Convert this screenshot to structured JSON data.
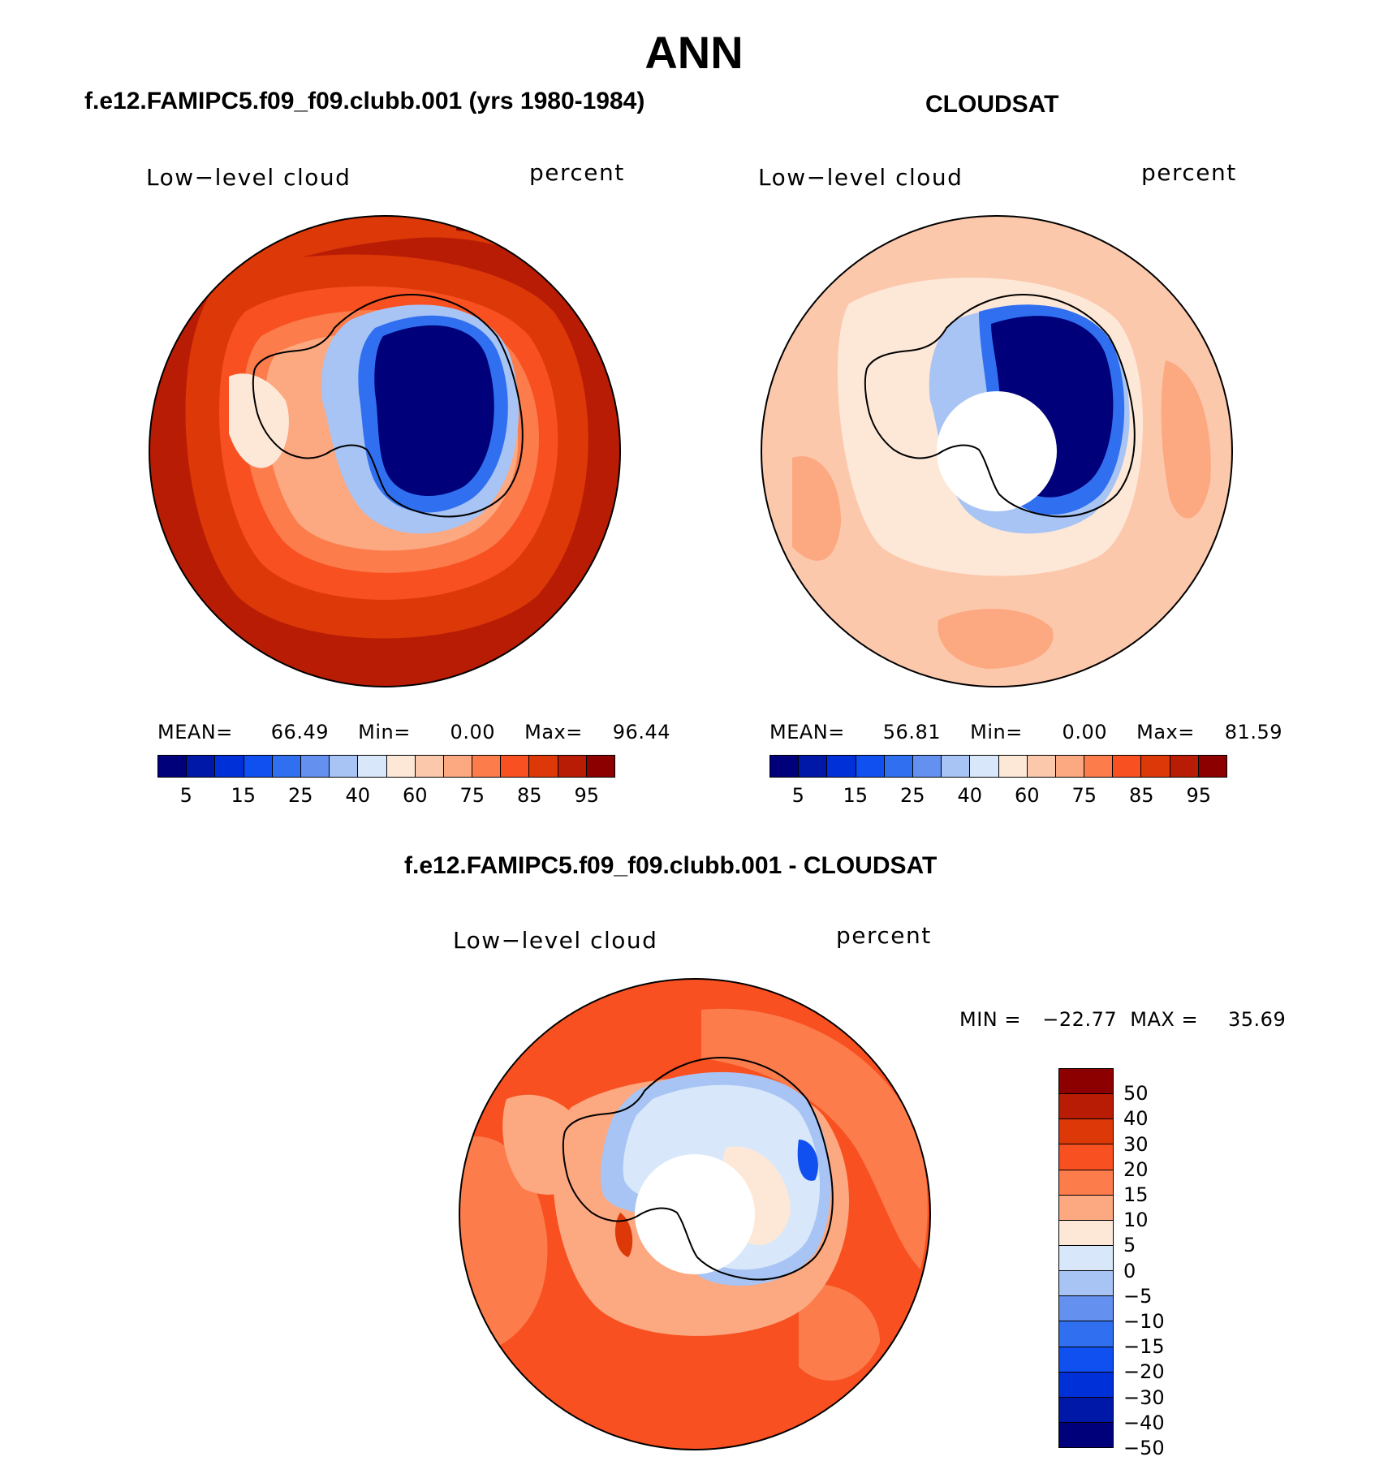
{
  "page_title": "ANN",
  "palette_abs": [
    "#00007a",
    "#0018a8",
    "#0030d8",
    "#1050f0",
    "#3070f0",
    "#6490f0",
    "#a8c4f4",
    "#d8e8fa",
    "#fde8d8",
    "#fcc8ac",
    "#fca880",
    "#fc7c4c",
    "#f85020",
    "#dc3808",
    "#b81c04",
    "#8c0000"
  ],
  "palette_diff": [
    "#8c0000",
    "#b81c04",
    "#dc3808",
    "#f85020",
    "#fc7c4c",
    "#fca880",
    "#fde8d8",
    "#d8e8fa",
    "#a8c4f4",
    "#6490f0",
    "#3070f0",
    "#1050f0",
    "#0030d8",
    "#0018a8",
    "#00007a"
  ],
  "panels": {
    "model": {
      "title": "f.e12.FAMIPC5.f09_f09.clubb.001 (yrs 1980-1984)",
      "field_label": "Low−level cloud",
      "units_label": "percent",
      "mean_label": "MEAN=",
      "mean_value": "66.49",
      "min_label": "Min=",
      "min_value": "0.00",
      "max_label": "Max=",
      "max_value": "96.44",
      "colorbar_ticks": [
        "5",
        "15",
        "25",
        "40",
        "60",
        "75",
        "85",
        "95"
      ]
    },
    "obs": {
      "title": "CLOUDSAT",
      "field_label": "Low−level cloud",
      "units_label": "percent",
      "mean_label": "MEAN=",
      "mean_value": "56.81",
      "min_label": "Min=",
      "min_value": "0.00",
      "max_label": "Max=",
      "max_value": "81.59",
      "colorbar_ticks": [
        "5",
        "15",
        "25",
        "40",
        "60",
        "75",
        "85",
        "95"
      ]
    },
    "diff": {
      "title": "f.e12.FAMIPC5.f09_f09.clubb.001 - CLOUDSAT",
      "field_label": "Low−level cloud",
      "units_label": "percent",
      "min_label": "MIN =",
      "min_value": "−22.77",
      "max_label": "MAX =",
      "max_value": "35.69",
      "colorbar_ticks": [
        "50",
        "40",
        "30",
        "20",
        "15",
        "10",
        "5",
        "0",
        "−5",
        "−10",
        "−15",
        "−20",
        "−30",
        "−40",
        "−50"
      ]
    }
  }
}
